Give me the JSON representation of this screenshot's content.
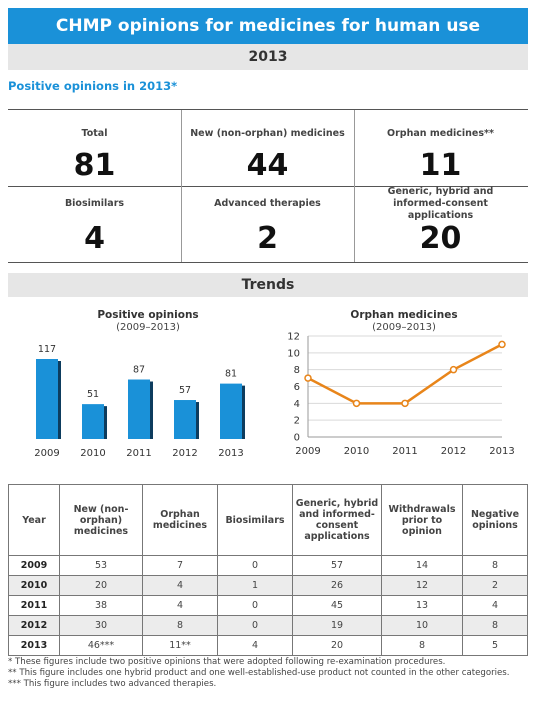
{
  "header": {
    "title": "CHMP opinions for medicines for human use",
    "year": "2013"
  },
  "positive_section": {
    "label": "Positive opinions in 2013*",
    "stats": [
      {
        "label": "Total",
        "value": "81"
      },
      {
        "label": "New (non-orphan) medicines",
        "value": "44"
      },
      {
        "label": "Orphan medicines**",
        "value": "11"
      },
      {
        "label": "Biosimilars",
        "value": "4"
      },
      {
        "label": "Advanced therapies",
        "value": "2"
      },
      {
        "label": "Generic, hybrid and informed-consent applications",
        "value": "20"
      }
    ]
  },
  "trends": {
    "label": "Trends"
  },
  "chart_data": [
    {
      "type": "bar",
      "title": "Positive opinions",
      "subtitle": "(2009–2013)",
      "categories": [
        "2009",
        "2010",
        "2011",
        "2012",
        "2013"
      ],
      "values": [
        117,
        51,
        87,
        57,
        81
      ],
      "data_labels": true,
      "axes_visible": false,
      "color": "#1a91d8"
    },
    {
      "type": "line",
      "title": "Orphan medicines",
      "subtitle": "(2009–2013)",
      "x": [
        "2009",
        "2010",
        "2011",
        "2012",
        "2013"
      ],
      "values": [
        7,
        4,
        4,
        8,
        11
      ],
      "ylim": [
        0,
        12
      ],
      "yticks": [
        0,
        2,
        4,
        6,
        8,
        10,
        12
      ],
      "grid": true,
      "color": "#e8851a"
    }
  ],
  "table": {
    "headers": [
      "Year",
      "New (non-orphan) medicines",
      "Orphan medicines",
      "Biosimilars",
      "Generic, hybrid and informed-consent applications",
      "Withdrawals prior to opinion",
      "Negative opinions"
    ],
    "rows": [
      [
        "2009",
        "53",
        "7",
        "0",
        "57",
        "14",
        "8"
      ],
      [
        "2010",
        "20",
        "4",
        "1",
        "26",
        "12",
        "2"
      ],
      [
        "2011",
        "38",
        "4",
        "0",
        "45",
        "13",
        "4"
      ],
      [
        "2012",
        "30",
        "8",
        "0",
        "19",
        "10",
        "8"
      ],
      [
        "2013",
        "46***",
        "11**",
        "4",
        "20",
        "8",
        "5"
      ]
    ]
  },
  "footnotes": [
    "* These figures include two positive opinions that were adopted following re-examination procedures.",
    "** This figure includes one hybrid product and one well-established-use product not counted in the other categories.",
    "*** This figure includes two advanced therapies."
  ]
}
